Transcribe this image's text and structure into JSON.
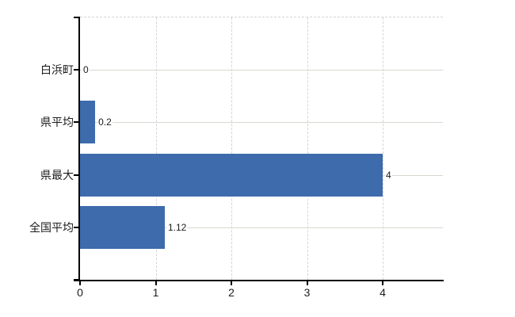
{
  "chart_data": {
    "type": "bar",
    "orientation": "horizontal",
    "title": "",
    "xlabel": "",
    "ylabel": "",
    "categories": [
      "白浜町",
      "県平均",
      "県最大",
      "全国平均"
    ],
    "values": [
      0,
      0.2,
      4,
      1.12
    ],
    "value_labels": [
      "0",
      "0.2",
      "4",
      "1.12"
    ],
    "x_ticks": [
      0,
      1,
      2,
      3,
      4
    ],
    "x_tick_labels": [
      "0",
      "1",
      "2",
      "3",
      "4"
    ],
    "xlim": [
      0,
      4.8
    ],
    "grid": "on",
    "legend": "none",
    "colors": {
      "bar": "#3d6bac",
      "axis": "#000000",
      "text": "#1c1c1c",
      "vertical_gridline": "#d7d3da",
      "horizontal_gridline": "#d4dacf",
      "top_border": "#d5d1d8",
      "background": "#ffffff"
    }
  }
}
